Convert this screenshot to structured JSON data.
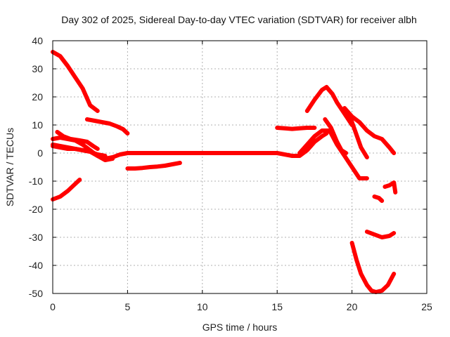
{
  "chart_data": {
    "type": "scatter",
    "title": "Day 302 of 2025, Sidereal Day-to-day VTEC variation (SDTVAR) for receiver albh",
    "xlabel": "GPS time / hours",
    "ylabel": "SDTVAR / TECUs",
    "xlim": [
      0,
      25
    ],
    "ylim": [
      -50,
      40
    ],
    "xticks": [
      0,
      5,
      10,
      15,
      20,
      25
    ],
    "yticks": [
      -50,
      -40,
      -30,
      -20,
      -10,
      0,
      10,
      20,
      30,
      40
    ],
    "grid": true,
    "legend": "none",
    "colors": {
      "series": "#ff0000",
      "grid": "#b0b0b0"
    },
    "series": [
      {
        "x": [
          0.0,
          0.5,
          1.0,
          1.5,
          2.0,
          2.5,
          3.0
        ],
        "y": [
          36,
          34.5,
          31,
          27,
          23,
          17,
          15
        ]
      },
      {
        "x": [
          2.3,
          2.8,
          3.3,
          3.8,
          4.3,
          4.7,
          5.0
        ],
        "y": [
          12,
          11.5,
          11,
          10.5,
          9.5,
          8.5,
          7
        ]
      },
      {
        "x": [
          0.0,
          0.5,
          1.0,
          1.5,
          1.8
        ],
        "y": [
          -16.5,
          -15.5,
          -13.5,
          -11,
          -9.5
        ]
      },
      {
        "x": [
          0.3,
          0.7,
          1.2,
          1.8,
          2.3,
          2.7,
          3.0
        ],
        "y": [
          7.5,
          6,
          5,
          4.5,
          4,
          2.5,
          1.5
        ]
      },
      {
        "x": [
          0.0,
          0.5,
          1.0,
          1.5,
          2.0,
          2.5,
          3.0,
          3.5,
          4.0,
          4.5,
          5.0,
          6.0,
          7.0,
          8.0,
          9.0,
          10.0,
          11.0,
          12.0,
          13.0,
          14.0,
          15.0,
          15.5,
          16.0,
          16.5,
          17.0,
          17.5,
          18.0,
          18.3
        ],
        "y": [
          2.5,
          2,
          1.5,
          1.5,
          1,
          0.5,
          -1,
          -2,
          -1.5,
          -0.5,
          0,
          0,
          0,
          0,
          0,
          0,
          0,
          0,
          0,
          0,
          0,
          -0.5,
          -1,
          -1,
          1,
          4,
          6,
          7
        ]
      },
      {
        "x": [
          0.0,
          0.5,
          1.0,
          1.5,
          2.0,
          2.5,
          3.0,
          3.5,
          4.0
        ],
        "y": [
          5,
          5.5,
          5,
          4.5,
          3,
          1,
          -1,
          -2.5,
          -2
        ]
      },
      {
        "x": [
          0.0,
          0.5,
          1.0,
          1.5,
          2.0,
          2.5,
          3.0,
          3.5
        ],
        "y": [
          3,
          2.5,
          2,
          1.5,
          1,
          0.5,
          -0.5,
          -1
        ]
      },
      {
        "x": [
          5.0,
          5.5,
          6.0,
          6.5,
          7.0,
          7.5,
          8.0,
          8.5
        ],
        "y": [
          -5.5,
          -5.5,
          -5.3,
          -5,
          -4.8,
          -4.5,
          -4,
          -3.5
        ]
      },
      {
        "x": [
          15.0,
          15.5,
          16.0,
          16.5,
          17.0,
          17.5
        ],
        "y": [
          9,
          8.8,
          8.6,
          8.8,
          9,
          9
        ]
      },
      {
        "x": [
          17.0,
          17.5,
          18.0,
          18.3,
          18.7,
          19.0,
          19.5,
          20.0
        ],
        "y": [
          15,
          19,
          22.5,
          23.5,
          21,
          18,
          14,
          10
        ]
      },
      {
        "x": [
          19.5,
          20.0,
          20.5,
          21.0,
          21.5,
          22.0,
          22.5,
          22.8
        ],
        "y": [
          16,
          13,
          11,
          8,
          6,
          5,
          2,
          0
        ]
      },
      {
        "x": [
          19.8,
          20.2,
          20.6,
          21.0
        ],
        "y": [
          14,
          8,
          2,
          -1.5
        ]
      },
      {
        "x": [
          16.5,
          17.0,
          17.5,
          18.0,
          18.5,
          19.0,
          19.5,
          20.0,
          20.5,
          21.0
        ],
        "y": [
          0,
          3,
          6,
          8,
          8,
          3,
          -1,
          -5,
          -9,
          -9
        ]
      },
      {
        "x": [
          18.2,
          18.6,
          19.0,
          19.3,
          19.6
        ],
        "y": [
          12,
          9,
          4,
          1,
          0
        ]
      },
      {
        "x": [
          21.0,
          21.5,
          22.0,
          22.5,
          22.8
        ],
        "y": [
          -28,
          -29,
          -30,
          -29.5,
          -28.5
        ]
      },
      {
        "x": [
          21.5,
          21.8,
          22.0
        ],
        "y": [
          -15.5,
          -16,
          -17
        ]
      },
      {
        "x": [
          22.2,
          22.5,
          22.8,
          22.9
        ],
        "y": [
          -12,
          -11.5,
          -10.5,
          -14
        ]
      },
      {
        "x": [
          20.0,
          20.3,
          20.6,
          21.0,
          21.3,
          21.6,
          22.0,
          22.4,
          22.8
        ],
        "y": [
          -32,
          -38,
          -43,
          -47,
          -49,
          -49.5,
          -49,
          -47,
          -43
        ]
      }
    ]
  }
}
